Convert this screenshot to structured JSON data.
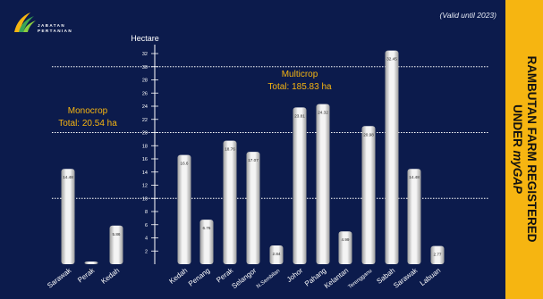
{
  "header": {
    "brand_line1": "JABATAN",
    "brand_line2": "PERTANIAN",
    "validity": "(Valid until 2023)"
  },
  "sidebar": {
    "line1": "RAMBUTAN FARM REGISTERED",
    "line2_prefix": "UNDER ",
    "line2_italic": "myGAP"
  },
  "colors": {
    "background": "#0c1b4c",
    "accent": "#f6b511",
    "bar": "#e8e8e8"
  },
  "chart_data": {
    "type": "bar",
    "ylabel": "Hectare",
    "ylim": [
      0,
      32
    ],
    "yticks": [
      2,
      4,
      6,
      8,
      10,
      12,
      14,
      16,
      18,
      20,
      22,
      24,
      26,
      28,
      30,
      32
    ],
    "reference_lines": [
      10,
      20,
      30
    ],
    "groups": [
      {
        "name": "Monocrop",
        "total_label": "Total: 20.54 ha",
        "categories": [
          "Sarawak",
          "Perak",
          "Kedah"
        ],
        "values": [
          14.48,
          0.2,
          5.86
        ],
        "value_labels": [
          "14.48",
          "0.2",
          "5.86"
        ]
      },
      {
        "name": "Multicrop",
        "total_label": "Total: 185.83 ha",
        "categories": [
          "Kedah",
          "Penang",
          "Perak",
          "Selangor",
          "N.Sembilan",
          "Johor",
          "Pahang",
          "Kelantan",
          "Terengganu",
          "Sabah",
          "Sarawak",
          "Labuan"
        ],
        "values": [
          16.6,
          6.76,
          18.76,
          17.07,
          2.84,
          23.81,
          24.32,
          4.99,
          20.98,
          32.45,
          14.48,
          2.77
        ],
        "value_labels": [
          "16.6",
          "6.76",
          "18.76",
          "17.07",
          "2.84",
          "23.81",
          "24.32",
          "4.99",
          "20.98",
          "32.45",
          "14.48",
          "2.77"
        ]
      }
    ]
  }
}
